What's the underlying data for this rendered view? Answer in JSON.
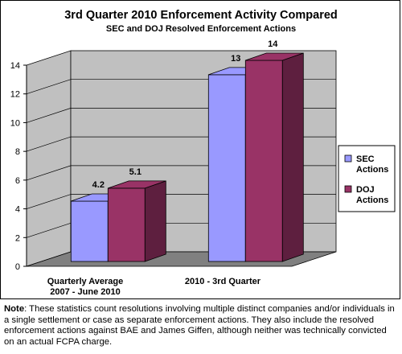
{
  "chart_data": {
    "type": "bar",
    "title": "3rd Quarter 2010 Enforcement Activity Compared",
    "subtitle": "SEC and DOJ Resolved Enforcement Actions",
    "categories": [
      [
        "Quarterly Average",
        "2007 - June 2010"
      ],
      [
        "2010 - 3rd Quarter"
      ]
    ],
    "series": [
      {
        "name": [
          "SEC",
          "Actions"
        ],
        "values": [
          4.2,
          13
        ],
        "labels": [
          "4.2",
          "13"
        ],
        "color": "#9999ff",
        "color_dark": "#6b6bd6"
      },
      {
        "name": [
          "DOJ",
          "Actions"
        ],
        "values": [
          5.1,
          14
        ],
        "labels": [
          "5.1",
          "14"
        ],
        "color": "#993366",
        "color_dark": "#5e1f3f"
      }
    ],
    "ylim": [
      0,
      14
    ],
    "yticks": [
      "0",
      "2",
      "4",
      "6",
      "8",
      "10",
      "12",
      "14"
    ],
    "grid": true,
    "three_d": true,
    "legend_position": "right",
    "wall_color": "#c0c0c0",
    "floor_color": "#808080"
  },
  "note": {
    "label": "Note",
    "text": ": These statistics count resolutions involving multiple distinct companies and/or individuals in a single settlement or case as separate enforcement actions. They also include the resolved enforcement actions against BAE and James Giffen, although neither was technically convicted on an actual FCPA charge."
  }
}
